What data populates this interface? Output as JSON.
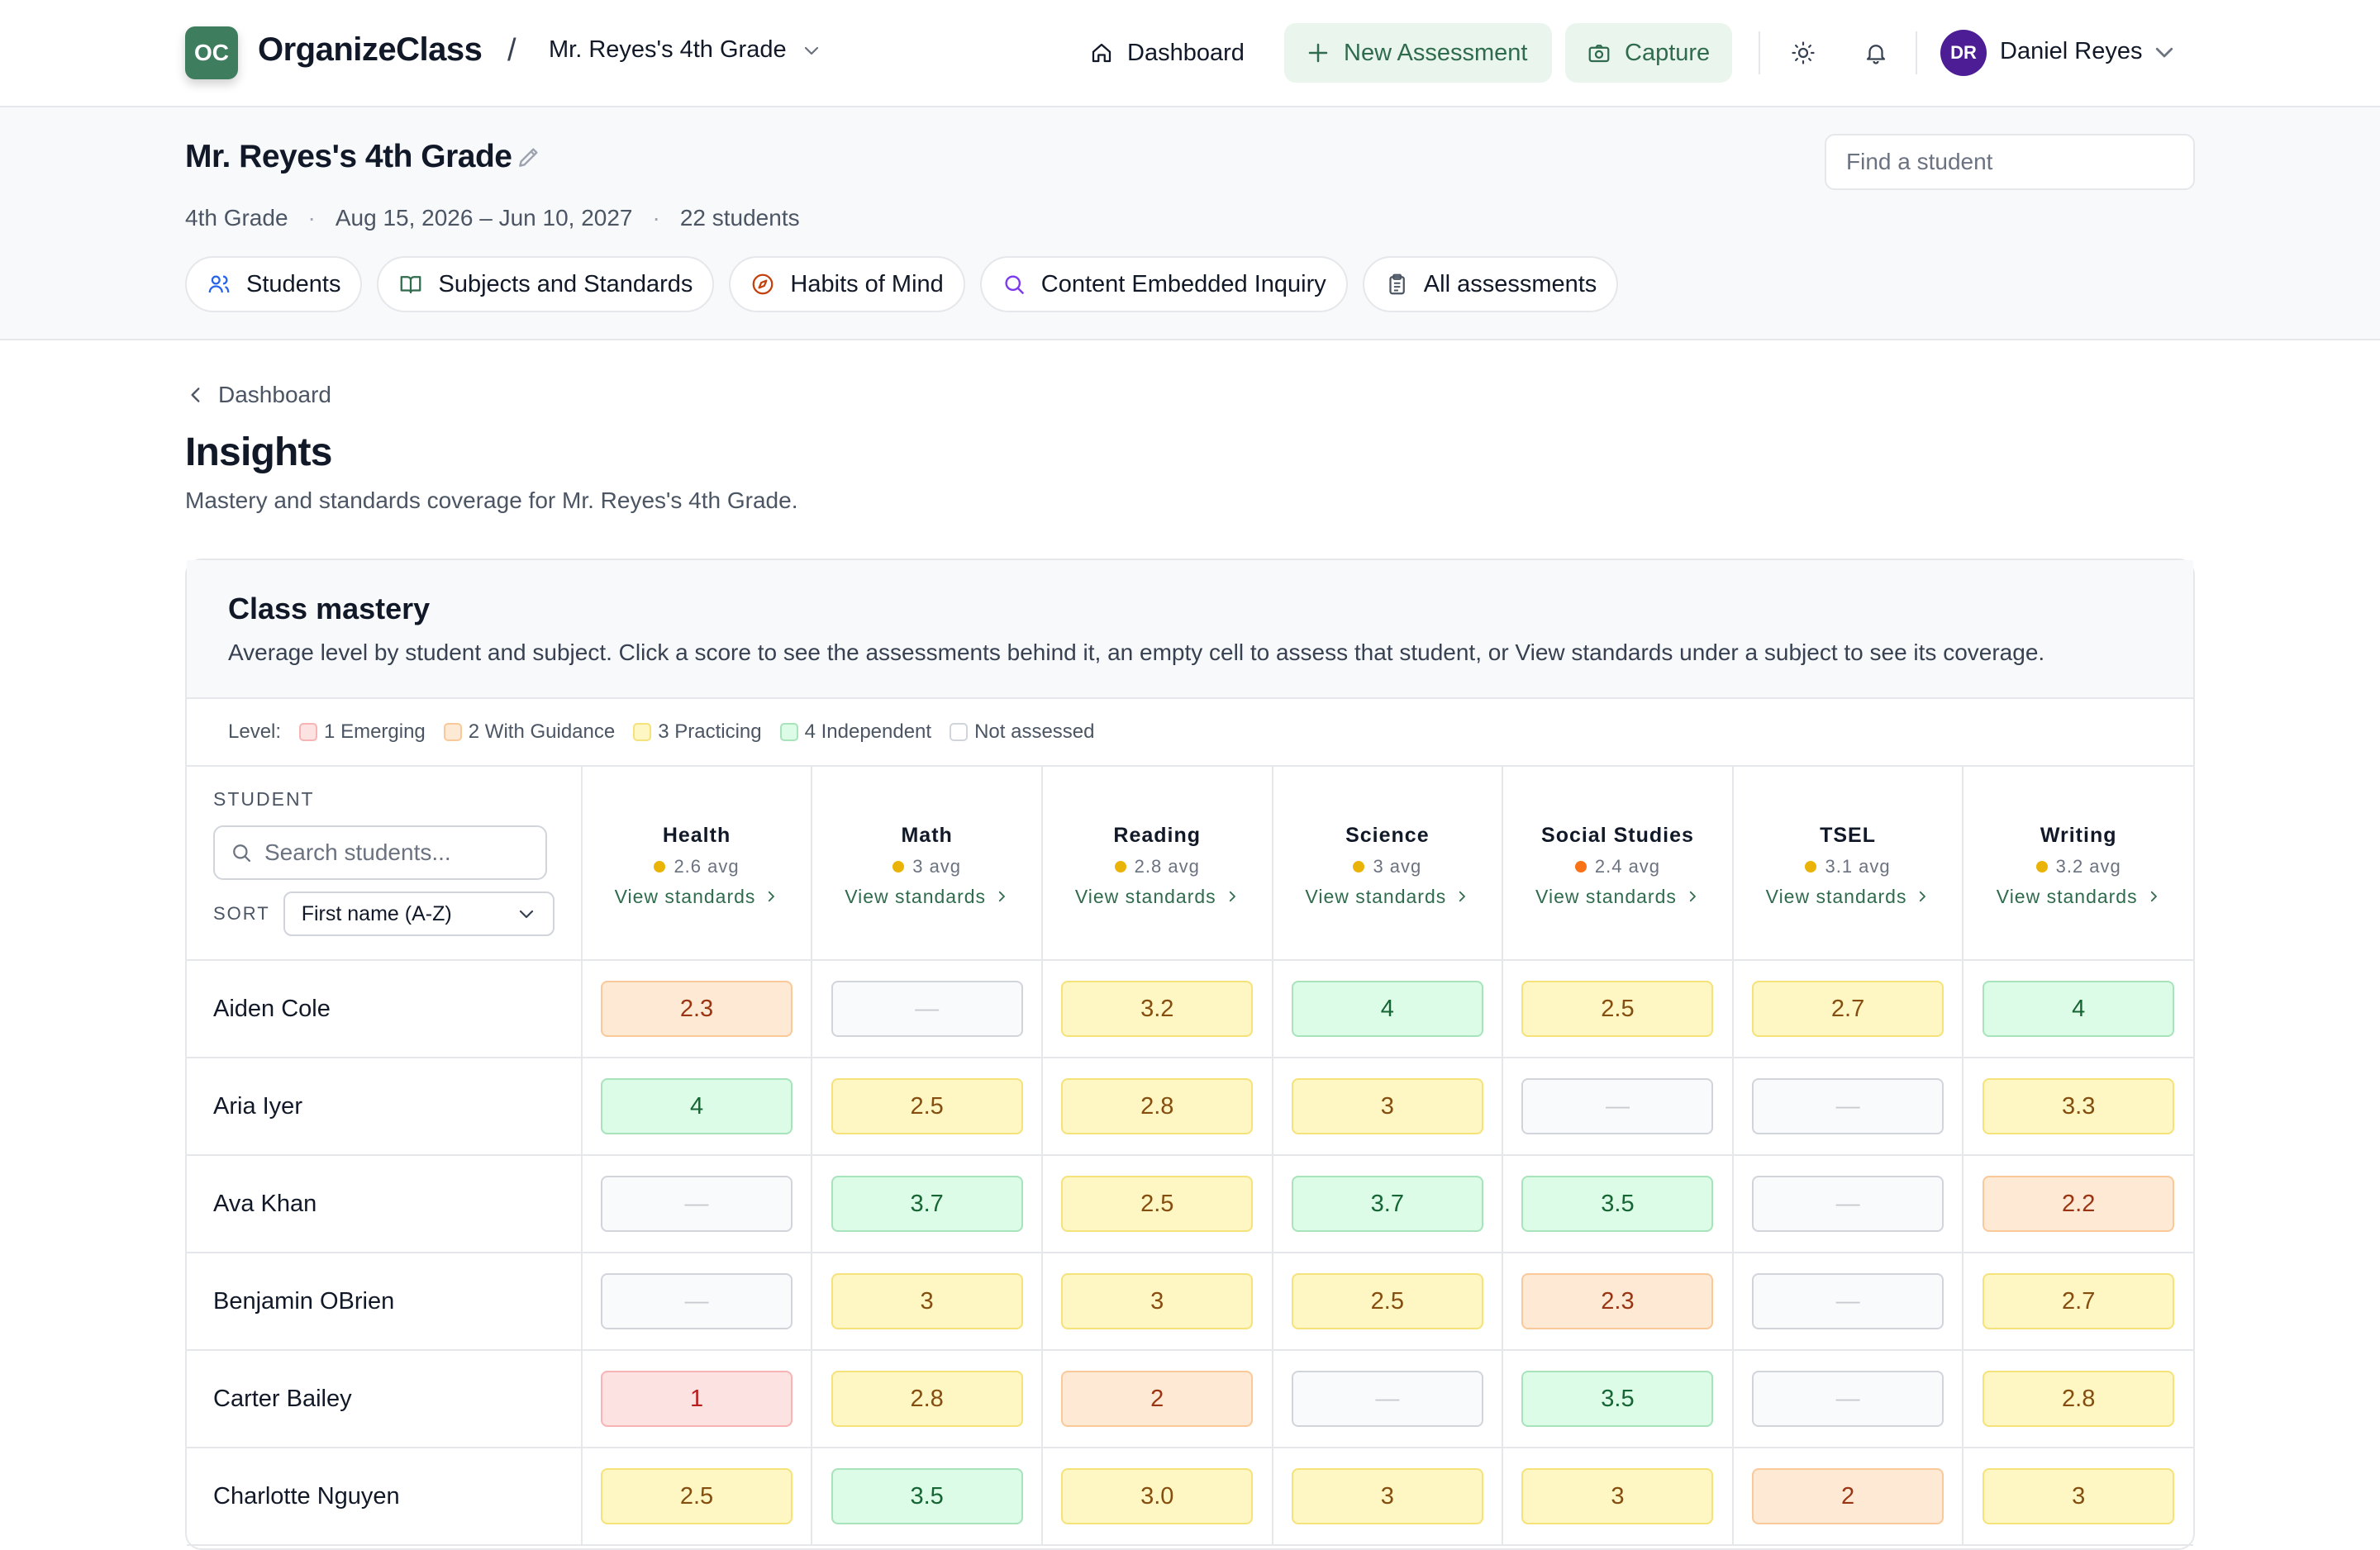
{
  "app": {
    "logo_text": "OC",
    "brand": "OrganizeClass",
    "breadcrumb_sep": "/",
    "current_class": "Mr. Reyes's 4th Grade"
  },
  "nav": {
    "dashboard": "Dashboard",
    "new_assessment": "New Assessment",
    "capture": "Capture",
    "user_initials": "DR",
    "user_name": "Daniel Reyes"
  },
  "class_header": {
    "title": "Mr. Reyes's 4th Grade",
    "grade": "4th Grade",
    "dates": "Aug 15, 2026 – Jun 10, 2027",
    "students": "22 students",
    "find_placeholder": "Find a student",
    "pills": [
      "Students",
      "Subjects and Standards",
      "Habits of Mind",
      "Content Embedded Inquiry",
      "All assessments"
    ]
  },
  "page": {
    "back": "Dashboard",
    "title": "Insights",
    "subtitle": "Mastery and standards coverage for Mr. Reyes's 4th Grade."
  },
  "mastery": {
    "title": "Class mastery",
    "description": "Average level by student and subject. Click a score to see the assessments behind it, an empty cell to assess that student, or View standards under a subject to see its coverage.",
    "legend_label": "Level:",
    "legend": [
      "1 Emerging",
      "2 With Guidance",
      "3 Practicing",
      "4 Independent",
      "Not assessed"
    ],
    "student_header": "STUDENT",
    "search_placeholder": "Search students...",
    "sort_label": "SORT",
    "sort_value": "First name (A-Z)",
    "view_standards": "View standards",
    "subjects": [
      {
        "name": "Health",
        "avg": "2.6 avg",
        "dot": "#eab308"
      },
      {
        "name": "Math",
        "avg": "3 avg",
        "dot": "#eab308"
      },
      {
        "name": "Reading",
        "avg": "2.8 avg",
        "dot": "#eab308"
      },
      {
        "name": "Science",
        "avg": "3 avg",
        "dot": "#eab308"
      },
      {
        "name": "Social Studies",
        "avg": "2.4 avg",
        "dot": "#f97316"
      },
      {
        "name": "TSEL",
        "avg": "3.1 avg",
        "dot": "#eab308"
      },
      {
        "name": "Writing",
        "avg": "3.2 avg",
        "dot": "#eab308"
      }
    ],
    "rows": [
      {
        "name": "Aiden Cole",
        "scores": [
          "2.3",
          "—",
          "3.2",
          "4",
          "2.5",
          "2.7",
          "4"
        ]
      },
      {
        "name": "Aria Iyer",
        "scores": [
          "4",
          "2.5",
          "2.8",
          "3",
          "—",
          "—",
          "3.3"
        ]
      },
      {
        "name": "Ava Khan",
        "scores": [
          "—",
          "3.7",
          "2.5",
          "3.7",
          "3.5",
          "—",
          "2.2"
        ]
      },
      {
        "name": "Benjamin OBrien",
        "scores": [
          "—",
          "3",
          "3",
          "2.5",
          "2.3",
          "—",
          "2.7"
        ]
      },
      {
        "name": "Carter Bailey",
        "scores": [
          "1",
          "2.8",
          "2",
          "—",
          "3.5",
          "—",
          "2.8"
        ]
      },
      {
        "name": "Charlotte Nguyen",
        "scores": [
          "2.5",
          "3.5",
          "3.0",
          "3",
          "3",
          "2",
          "3"
        ]
      }
    ]
  }
}
